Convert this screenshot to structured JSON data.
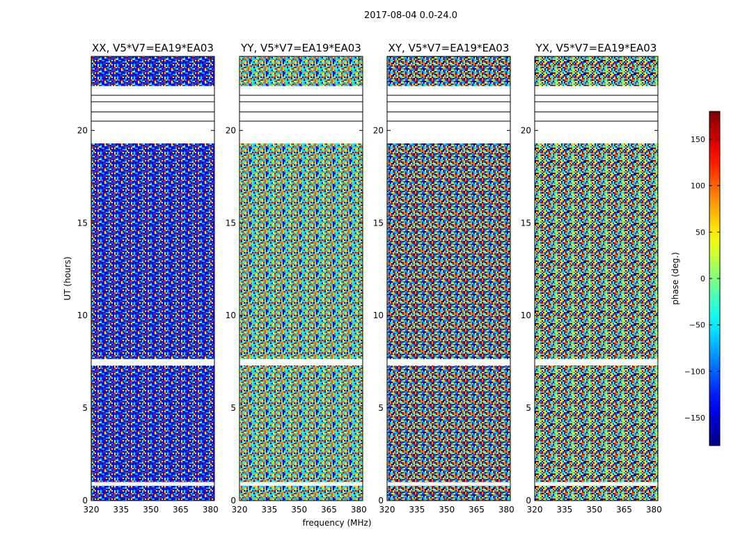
{
  "figure": {
    "title": "2017-08-04 0.0-24.0"
  },
  "chart_data": {
    "type": "heatmap",
    "suptitle": "2017-08-04 0.0-24.0",
    "xlabel": "frequency (MHz)",
    "ylabel": "UT (hours)",
    "xlim": [
      320,
      382
    ],
    "ylim": [
      0,
      24
    ],
    "x_ticks": [
      320,
      335,
      350,
      365,
      380
    ],
    "y_ticks": [
      0,
      5,
      10,
      15,
      20
    ],
    "colormap": "jet",
    "color_range": [
      -180,
      180
    ],
    "colorbar": {
      "label": "phase (deg.)",
      "ticks": [
        150,
        100,
        50,
        0,
        -50,
        -100,
        -150
      ],
      "tick_labels": [
        "150",
        "100",
        "50",
        "0",
        "−50",
        "−100",
        "−150"
      ]
    },
    "panels": [
      {
        "title": "XX, V5*V7=EA19*EA03",
        "polarization": "XX"
      },
      {
        "title": "YY, V5*V7=EA19*EA03",
        "polarization": "YY"
      },
      {
        "title": "XY, V5*V7=EA19*EA03",
        "polarization": "XY"
      },
      {
        "title": "YX, V5*V7=EA19*EA03",
        "polarization": "YX"
      }
    ],
    "flagged_ut_intervals": [
      [
        0.8,
        1.0
      ],
      [
        7.3,
        7.65
      ],
      [
        19.3,
        22.4
      ]
    ],
    "grid": false
  }
}
